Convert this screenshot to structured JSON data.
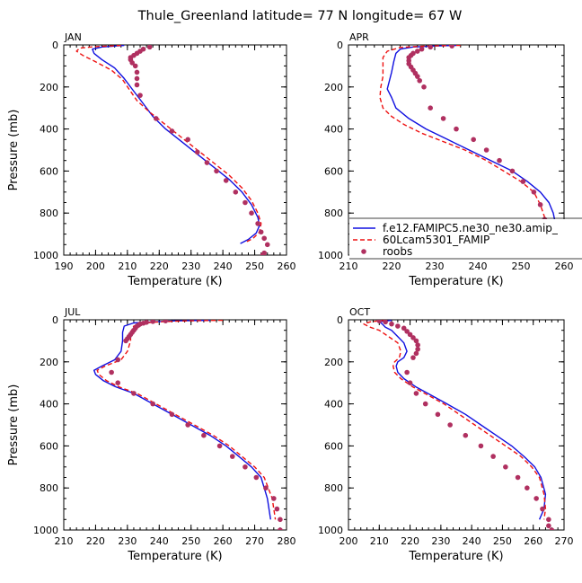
{
  "title": "Thule_Greenland  latitude= 77 N longitude= 67 W",
  "colors": {
    "model1": "#1010e0",
    "model2": "#ee1111",
    "obs": "#b03060"
  },
  "legend": {
    "entries": [
      "f.e12.FAMIPC5.ne30_ne30.amip_",
      "60Lcam5301_FAMIP",
      "roobs"
    ],
    "placement": "inside lower panel APR, bottom"
  },
  "chart_data": [
    {
      "type": "line",
      "panel": "JAN",
      "xlabel": "Temperature (K)",
      "ylabel": "Pressure (mb)",
      "xlim": [
        190,
        260
      ],
      "ylim": [
        1000,
        0
      ],
      "xticks": [
        190,
        200,
        210,
        220,
        230,
        240,
        250,
        260
      ],
      "yticks": [
        0,
        200,
        400,
        600,
        800,
        1000
      ],
      "series": [
        {
          "style": "solid",
          "color": "#1010e0",
          "x": [
            209,
            202,
            199,
            199.5,
            202,
            206,
            209,
            212,
            215,
            218,
            222,
            227,
            232,
            237,
            242,
            246,
            249,
            251,
            251.5,
            250.5,
            248,
            245.5
          ],
          "y": [
            2,
            10,
            20,
            40,
            70,
            110,
            160,
            220,
            280,
            340,
            400,
            460,
            520,
            580,
            640,
            700,
            760,
            820,
            860,
            895,
            925,
            945
          ]
        },
        {
          "style": "dashed",
          "color": "#ee1111",
          "x": [
            208,
            200,
            195,
            194,
            196,
            200,
            205,
            208.5,
            210.5,
            213,
            217,
            222,
            227,
            232,
            237,
            242,
            246,
            249,
            251,
            252,
            251.5,
            249.5,
            247
          ],
          "y": [
            2,
            8,
            15,
            30,
            50,
            80,
            120,
            165,
            210,
            265,
            320,
            380,
            440,
            500,
            560,
            620,
            680,
            740,
            800,
            850,
            890,
            920,
            940
          ]
        },
        {
          "style": "points",
          "color": "#b03060",
          "x": [
            217,
            215,
            214,
            213,
            212,
            211,
            211,
            211.5,
            212.5,
            213,
            213,
            213,
            214,
            219,
            224,
            229,
            232,
            235,
            238,
            241,
            244,
            247,
            249,
            251,
            252,
            253,
            254,
            253,
            252.5
          ],
          "y": [
            10,
            20,
            30,
            40,
            50,
            60,
            70,
            85,
            100,
            130,
            160,
            190,
            240,
            350,
            410,
            450,
            510,
            560,
            600,
            645,
            700,
            750,
            800,
            850,
            890,
            920,
            950,
            990,
            1000
          ]
        }
      ]
    },
    {
      "type": "line",
      "panel": "APR",
      "xlabel": "Temperature (K)",
      "ylabel": "",
      "xlim": [
        210,
        260
      ],
      "ylim": [
        1000,
        0
      ],
      "xticks": [
        210,
        220,
        230,
        240,
        250,
        260
      ],
      "yticks": [
        0,
        200,
        400,
        600,
        800,
        1000
      ],
      "series": [
        {
          "style": "solid",
          "color": "#1010e0",
          "x": [
            235,
            230,
            225,
            222,
            221,
            220.5,
            220,
            219.5,
            219,
            220,
            221,
            224,
            228,
            233,
            238,
            243,
            248,
            251.5,
            254.5,
            256.5,
            257.5,
            258,
            257.5,
            256,
            254
          ],
          "y": [
            2,
            5,
            10,
            20,
            40,
            80,
            130,
            170,
            210,
            250,
            300,
            350,
            400,
            450,
            500,
            550,
            600,
            650,
            700,
            750,
            800,
            850,
            890,
            920,
            940
          ]
        },
        {
          "style": "dashed",
          "color": "#ee1111",
          "x": [
            236,
            228,
            222,
            219,
            218,
            218,
            218,
            217.5,
            217.3,
            218,
            220,
            223,
            227,
            232,
            237,
            242,
            246,
            250,
            253,
            254.5,
            255.5,
            255.5,
            254.5,
            253.5
          ],
          "y": [
            2,
            5,
            12,
            30,
            60,
            100,
            150,
            200,
            250,
            300,
            340,
            380,
            420,
            460,
            500,
            550,
            600,
            650,
            700,
            760,
            820,
            880,
            920,
            940
          ]
        },
        {
          "style": "points",
          "color": "#b03060",
          "x": [
            234,
            229,
            227,
            226,
            225,
            224.5,
            224,
            224,
            224,
            224.5,
            225,
            225.5,
            226,
            226.5,
            227.5,
            229,
            232,
            235,
            239,
            242,
            245,
            248,
            250.5,
            253,
            254.5,
            255.5,
            256.5,
            257,
            257
          ],
          "y": [
            5,
            10,
            20,
            30,
            40,
            50,
            60,
            75,
            90,
            105,
            120,
            135,
            150,
            170,
            200,
            300,
            350,
            400,
            450,
            500,
            550,
            600,
            650,
            700,
            760,
            830,
            900,
            950,
            1000
          ]
        }
      ]
    },
    {
      "type": "line",
      "panel": "JUL",
      "xlabel": "Temperature (K)",
      "ylabel": "Pressure (mb)",
      "xlim": [
        210,
        280
      ],
      "ylim": [
        1000,
        0
      ],
      "xticks": [
        210,
        220,
        230,
        240,
        250,
        260,
        270,
        280
      ],
      "yticks": [
        0,
        200,
        400,
        600,
        800,
        1000
      ],
      "series": [
        {
          "style": "solid",
          "color": "#1010e0",
          "x": [
            256,
            245,
            238,
            232,
            229,
            228.5,
            228.5,
            228,
            226,
            222,
            219.5,
            220,
            222.5,
            226.5,
            232,
            238,
            244,
            250,
            256,
            261,
            265,
            269,
            272,
            274,
            275
          ],
          "y": [
            2,
            5,
            10,
            15,
            30,
            60,
            100,
            150,
            190,
            220,
            240,
            260,
            290,
            320,
            350,
            400,
            450,
            500,
            550,
            600,
            650,
            700,
            750,
            850,
            950
          ]
        },
        {
          "style": "dashed",
          "color": "#ee1111",
          "x": [
            260,
            248,
            240,
            235,
            232,
            231,
            231,
            230,
            228,
            223,
            220.5,
            221,
            223.5,
            227.5,
            233,
            239,
            245,
            251,
            257,
            262,
            266,
            270,
            273,
            275.5,
            276.5
          ],
          "y": [
            2,
            5,
            10,
            15,
            30,
            60,
            100,
            150,
            190,
            220,
            240,
            260,
            290,
            320,
            350,
            400,
            450,
            500,
            550,
            600,
            650,
            700,
            750,
            850,
            950
          ]
        },
        {
          "style": "points",
          "color": "#b03060",
          "x": [
            242,
            238,
            236,
            235,
            234,
            233.5,
            233,
            232.5,
            232,
            231.5,
            231,
            230.5,
            230,
            229.5,
            227,
            225,
            227,
            232,
            238,
            244,
            249,
            254,
            259,
            263,
            267,
            270.5,
            273.5,
            276,
            277,
            278,
            278
          ],
          "y": [
            5,
            8,
            12,
            16,
            20,
            25,
            30,
            40,
            50,
            60,
            70,
            80,
            90,
            100,
            190,
            250,
            300,
            350,
            400,
            450,
            500,
            550,
            600,
            650,
            700,
            750,
            800,
            850,
            900,
            950,
            1000
          ]
        }
      ]
    },
    {
      "type": "line",
      "panel": "OCT",
      "xlabel": "Temperature (K)",
      "ylabel": "",
      "xlim": [
        200,
        270
      ],
      "ylim": [
        1000,
        0
      ],
      "xticks": [
        200,
        210,
        220,
        230,
        240,
        250,
        260,
        270
      ],
      "yticks": [
        0,
        200,
        400,
        600,
        800,
        1000
      ],
      "series": [
        {
          "style": "solid",
          "color": "#1010e0",
          "x": [
            214,
            210,
            211,
            212,
            214,
            216,
            218,
            219,
            218,
            216,
            215.5,
            216,
            218,
            222,
            227,
            232,
            238,
            243,
            248,
            253,
            257,
            260.5,
            262.5,
            264,
            263.5,
            262
          ],
          "y": [
            2,
            10,
            20,
            35,
            50,
            80,
            110,
            150,
            180,
            200,
            220,
            250,
            280,
            320,
            360,
            400,
            450,
            500,
            550,
            600,
            650,
            700,
            750,
            830,
            900,
            950
          ]
        },
        {
          "style": "dashed",
          "color": "#ee1111",
          "x": [
            212,
            207,
            205,
            207,
            210,
            213,
            216,
            217,
            216.5,
            215,
            214.5,
            215,
            217,
            221,
            226,
            231,
            236,
            241,
            246,
            251,
            256,
            259.5,
            262,
            263.5,
            264,
            263.5
          ],
          "y": [
            2,
            10,
            20,
            35,
            50,
            80,
            110,
            150,
            180,
            200,
            220,
            250,
            280,
            320,
            360,
            400,
            450,
            500,
            550,
            600,
            650,
            700,
            750,
            830,
            900,
            950
          ]
        },
        {
          "style": "points",
          "color": "#b03060",
          "x": [
            210,
            212,
            214,
            216,
            218,
            219,
            220,
            221,
            222,
            222.5,
            222.5,
            222,
            221,
            219,
            220,
            222,
            225,
            229,
            233,
            238,
            243,
            247,
            251,
            255,
            258,
            261,
            263,
            265,
            265,
            266
          ],
          "y": [
            5,
            10,
            20,
            30,
            40,
            55,
            70,
            85,
            100,
            120,
            140,
            160,
            180,
            250,
            300,
            350,
            400,
            450,
            500,
            550,
            600,
            650,
            700,
            750,
            800,
            850,
            900,
            950,
            980,
            1000
          ]
        }
      ]
    }
  ]
}
